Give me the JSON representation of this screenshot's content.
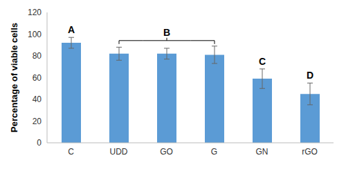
{
  "chart_data": {
    "type": "bar",
    "y_label": "Percentage of viable cells",
    "categories": [
      "C",
      "UDD",
      "GO",
      "G",
      "GN",
      "rGO"
    ],
    "values": [
      92,
      82,
      82,
      81,
      59,
      45
    ],
    "errors": [
      5,
      6,
      5,
      8,
      9,
      10
    ],
    "color": "#5b9bd5",
    "ylim": [
      0,
      120
    ],
    "yticks": [
      0,
      20,
      40,
      60,
      80,
      100,
      120
    ],
    "grid": false,
    "annotations": [
      {
        "text": "A",
        "categories": [
          "C"
        ]
      },
      {
        "text": "B",
        "categories": [
          "UDD",
          "GO",
          "G"
        ]
      },
      {
        "text": "C",
        "categories": [
          "GN"
        ]
      },
      {
        "text": "D",
        "categories": [
          "rGO"
        ]
      }
    ]
  }
}
